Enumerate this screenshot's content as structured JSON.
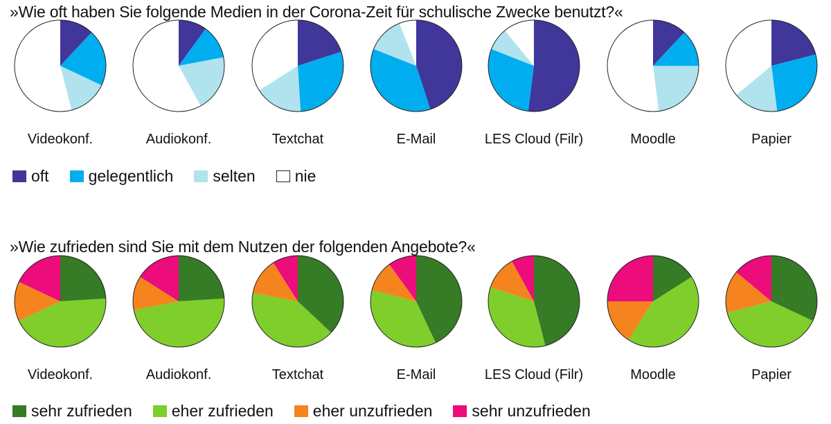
{
  "chart_data": [
    {
      "type": "pie",
      "title": "»Wie oft haben Sie folgende Medien in der Corona-Zeit für schulische Zwecke benutzt?«",
      "categories": [
        "oft",
        "gelegentlich",
        "selten",
        "nie"
      ],
      "colors": [
        "#41369a",
        "#00aeef",
        "#b0e3ee",
        "#ffffff"
      ],
      "legend_position": "bottom-left",
      "series": [
        {
          "name": "Videokonf.",
          "values": [
            12,
            20,
            14,
            54
          ]
        },
        {
          "name": "Audiokonf.",
          "values": [
            10,
            12,
            20,
            58
          ]
        },
        {
          "name": "Textchat",
          "values": [
            20,
            29,
            17,
            34
          ]
        },
        {
          "name": "E-Mail",
          "values": [
            45,
            36,
            13,
            6
          ]
        },
        {
          "name": "LES Cloud (Filr)",
          "values": [
            52,
            29,
            8,
            11
          ]
        },
        {
          "name": "Moodle",
          "values": [
            12,
            13,
            23,
            52
          ]
        },
        {
          "name": "Papier",
          "values": [
            21,
            27,
            16,
            36
          ]
        }
      ]
    },
    {
      "type": "pie",
      "title": "»Wie zufrieden sind Sie mit dem Nutzen der folgenden Angebote?«",
      "categories": [
        "sehr zufrieden",
        "eher zufrieden",
        "eher unzufrieden",
        "sehr unzufrieden"
      ],
      "colors": [
        "#367b25",
        "#7fce2b",
        "#f5841f",
        "#ec0c7b"
      ],
      "legend_position": "bottom-left",
      "series": [
        {
          "name": "Videokonf.",
          "values": [
            24,
            44,
            14,
            18
          ]
        },
        {
          "name": "Audiokonf.",
          "values": [
            24,
            48,
            12,
            16
          ]
        },
        {
          "name": "Textchat",
          "values": [
            37,
            41,
            13,
            9
          ]
        },
        {
          "name": "E-Mail",
          "values": [
            43,
            36,
            11,
            10
          ]
        },
        {
          "name": "LES Cloud (Filr)",
          "values": [
            46,
            34,
            12,
            8
          ]
        },
        {
          "name": "Moodle",
          "values": [
            16,
            43,
            16,
            25
          ]
        },
        {
          "name": "Papier",
          "values": [
            32,
            39,
            15,
            14
          ]
        }
      ]
    }
  ]
}
